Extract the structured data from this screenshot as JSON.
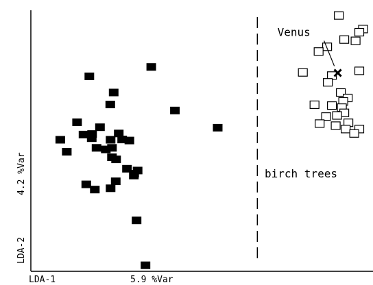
{
  "chart_data": {
    "type": "scatter",
    "title": "",
    "xlabel": "LDA-1",
    "xunit": "5.9 %Var",
    "ylabel": "LDA-2",
    "yunit": "4.2 %Var",
    "grid": false,
    "legend": "none",
    "xlim": [
      0,
      100
    ],
    "ylim": [
      0,
      100
    ],
    "divider_x": 66.2,
    "region_label": "birch trees",
    "series": [
      {
        "marker": "filled-square",
        "x": [
          17.1,
          35.2,
          54.6,
          24.2,
          42.1,
          23.2,
          20.2,
          13.5,
          17.9,
          15.4,
          8.6,
          10.5,
          17.8,
          25.7,
          23.3,
          26.7,
          28.8,
          23.7,
          21.9,
          19.2,
          23.7,
          24.9,
          28.1,
          30.2,
          31.2,
          30.1,
          16.2,
          24.8,
          23.3,
          18.7,
          30.9,
          33.5
        ],
        "y": [
          74.7,
          78.3,
          55.0,
          68.5,
          61.6,
          63.9,
          55.2,
          57.1,
          52.6,
          52.4,
          50.4,
          45.8,
          51.0,
          52.8,
          50.4,
          50.5,
          50.1,
          47.3,
          46.7,
          47.3,
          43.7,
          42.9,
          39.3,
          37.4,
          38.6,
          36.7,
          33.3,
          34.5,
          31.8,
          31.3,
          19.5,
          2.3
        ]
      },
      {
        "marker": "open-square",
        "x": [
          90.0,
          86.6,
          91.6,
          94.9,
          97.1,
          96.0,
          84.1,
          79.5,
          96.0,
          88.0,
          86.8,
          90.6,
          92.6,
          91.3,
          82.9,
          88.0,
          90.9,
          91.6,
          89.5,
          86.3,
          92.8,
          84.4,
          89.1,
          92.0,
          96.0,
          94.5
        ],
        "y": [
          98.0,
          86.0,
          88.8,
          88.3,
          92.8,
          91.6,
          84.2,
          76.2,
          76.8,
          75.0,
          72.4,
          68.5,
          66.4,
          65.1,
          63.8,
          63.5,
          62.7,
          60.7,
          59.7,
          59.3,
          56.9,
          56.6,
          55.8,
          54.5,
          54.5,
          52.8
        ]
      }
    ],
    "annotations": [
      {
        "label": "Venus",
        "marker": "x",
        "x": 89.7,
        "y": 76.0
      }
    ]
  }
}
